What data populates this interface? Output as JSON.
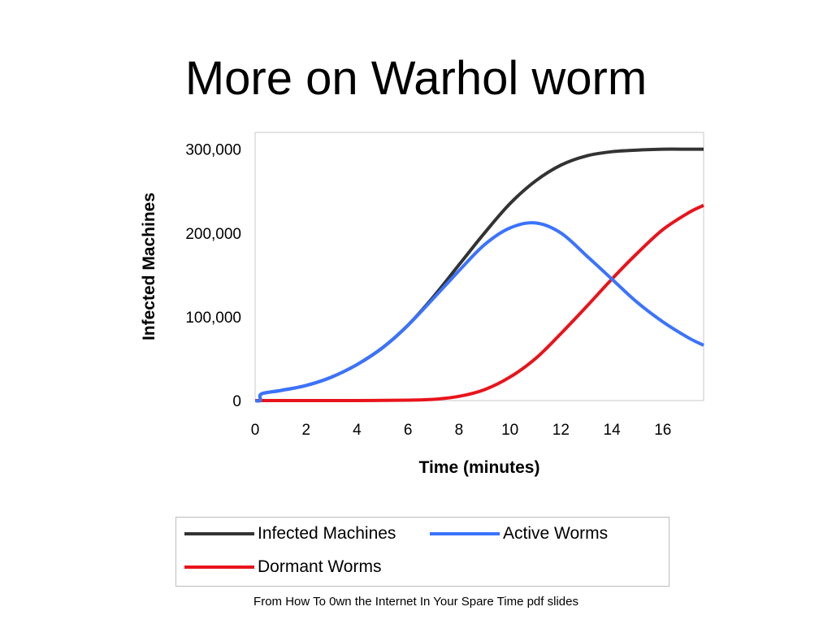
{
  "slide": {
    "title": "More on Warhol worm",
    "source": "From How To 0wn the Internet In Your Spare Time pdf slides"
  },
  "chart_data": {
    "type": "line",
    "title": "",
    "xlabel": "Time (minutes)",
    "ylabel": "Infected Machines",
    "xlim": [
      0,
      17.6
    ],
    "ylim": [
      0,
      320000
    ],
    "x_ticks": [
      0,
      2,
      4,
      6,
      8,
      10,
      12,
      14,
      16
    ],
    "y_ticks": [
      0,
      100000,
      200000,
      300000
    ],
    "y_tick_labels": [
      "0",
      "100,000",
      "200,000",
      "300,000"
    ],
    "grid": false,
    "legend_position": "bottom",
    "series": [
      {
        "name": "Infected Machines",
        "color": "#333333",
        "x": [
          0,
          0.2,
          0.25,
          1,
          2,
          3,
          4,
          5,
          6,
          7,
          8,
          9,
          10,
          11,
          12,
          13,
          14,
          15,
          16,
          17,
          17.6
        ],
        "y": [
          0,
          0,
          8000,
          12000,
          18000,
          28000,
          43000,
          63000,
          90000,
          124000,
          162000,
          200000,
          235000,
          262000,
          281000,
          292000,
          297000,
          299000,
          300000,
          300000,
          300000
        ]
      },
      {
        "name": "Active Worms",
        "color": "#3b73ff",
        "x": [
          0,
          0.2,
          0.25,
          1,
          2,
          3,
          4,
          5,
          6,
          7,
          8,
          9,
          10,
          11,
          12,
          13,
          14,
          15,
          16,
          17,
          17.6
        ],
        "y": [
          0,
          0,
          8000,
          12000,
          18000,
          28000,
          43000,
          63000,
          90000,
          122000,
          155000,
          186000,
          206000,
          212000,
          200000,
          173000,
          145000,
          117000,
          94000,
          75000,
          66000
        ]
      },
      {
        "name": "Dormant Worms",
        "color": "#e8141b",
        "x": [
          0,
          2,
          4,
          6,
          7,
          8,
          9,
          10,
          11,
          12,
          13,
          14,
          15,
          16,
          17,
          17.6
        ],
        "y": [
          0,
          0,
          0,
          500,
          1500,
          5000,
          13000,
          28000,
          50000,
          80000,
          112000,
          145000,
          176000,
          204000,
          224000,
          233000
        ]
      }
    ]
  }
}
